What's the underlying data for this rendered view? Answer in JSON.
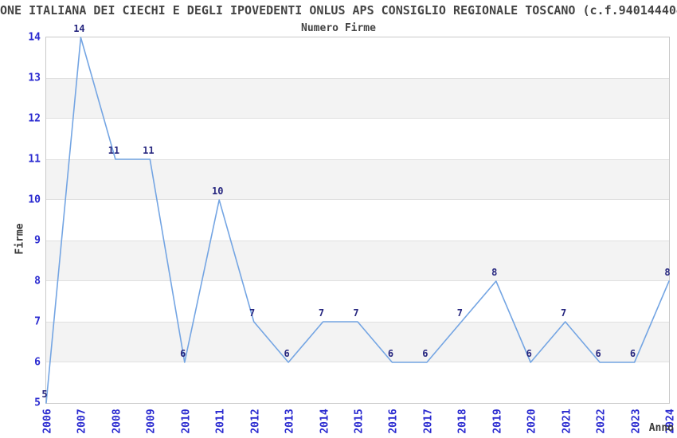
{
  "header": {
    "title": "ONE ITALIANA DEI CIECHI E DEGLI IPOVEDENTI ONLUS APS CONSIGLIO REGIONALE TOSCANO (c.f.940144404",
    "subtitle": "Numero Firme"
  },
  "chart_data": {
    "type": "line",
    "title": "Numero Firme",
    "xlabel": "Anno",
    "ylabel": "Firme",
    "x": [
      "2006",
      "2007",
      "2008",
      "2009",
      "2010",
      "2011",
      "2012",
      "2013",
      "2014",
      "2015",
      "2016",
      "2017",
      "2018",
      "2019",
      "2020",
      "2021",
      "2022",
      "2023",
      "2024"
    ],
    "values": [
      5,
      14,
      11,
      11,
      6,
      10,
      7,
      6,
      7,
      7,
      6,
      6,
      7,
      8,
      6,
      7,
      6,
      6,
      8
    ],
    "ylim": [
      5,
      14
    ],
    "y_tick_step": 1,
    "legend": "none",
    "grid": "alternating-horizontal-bands",
    "colors": {
      "line": "#74a5e3",
      "tick_label": "#2a2ad0",
      "point_label": "#26267f",
      "band_fill": "#f3f3f3",
      "band_edge": "#e0e0e0",
      "plot_border": "#c9c9c9",
      "text": "#444444"
    }
  }
}
